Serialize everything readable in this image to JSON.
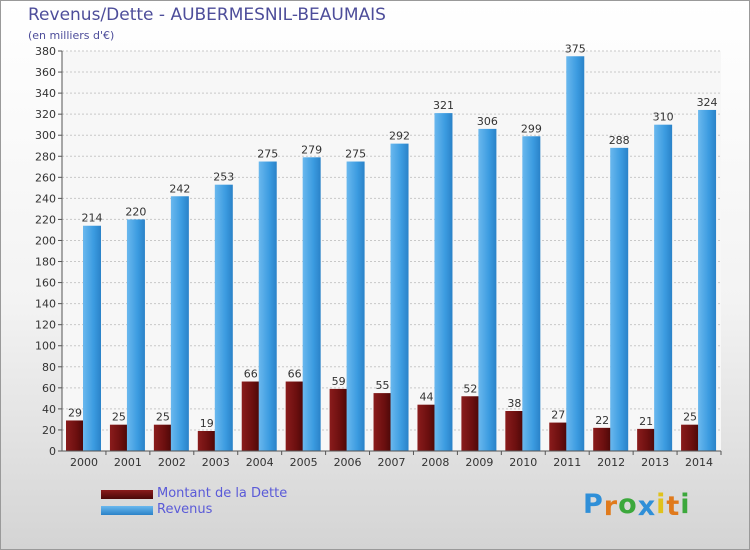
{
  "header": {
    "title": "Revenus/Dette - AUBERMESNIL-BEAUMAIS",
    "subtitle": "(en milliers d'€)"
  },
  "chart_data": {
    "type": "bar",
    "title": "Revenus/Dette - AUBERMESNIL-BEAUMAIS",
    "ylabel": "(en milliers d'€)",
    "xlabel": "",
    "ylim": [
      0,
      380
    ],
    "ytick_step": 20,
    "grid": true,
    "categories": [
      "2000",
      "2001",
      "2002",
      "2003",
      "2004",
      "2005",
      "2006",
      "2007",
      "2008",
      "2009",
      "2010",
      "2011",
      "2012",
      "2013",
      "2014"
    ],
    "series": [
      {
        "name": "Montant de la Dette",
        "color": "#6b0f0f",
        "values": [
          29,
          25,
          25,
          19,
          66,
          66,
          59,
          55,
          44,
          52,
          38,
          27,
          22,
          21,
          25
        ]
      },
      {
        "name": "Revenus",
        "color": "#3b9be0",
        "values": [
          214,
          220,
          242,
          253,
          275,
          279,
          275,
          292,
          321,
          306,
          299,
          375,
          288,
          310,
          324
        ]
      }
    ],
    "legend_position": "bottom-left"
  },
  "legend": {
    "items": [
      {
        "label": "Montant de la Dette",
        "color": "#6b0f0f"
      },
      {
        "label": "Revenus",
        "color": "#3b9be0"
      }
    ]
  },
  "logo": {
    "letters": [
      "P",
      "r",
      "o",
      "x",
      "i",
      "t",
      "i"
    ],
    "colors": [
      "#2f8fd8",
      "#e07a1c",
      "#3ca83c",
      "#2f8fd8",
      "#e0c21c",
      "#e07a1c",
      "#3ca83c"
    ]
  }
}
